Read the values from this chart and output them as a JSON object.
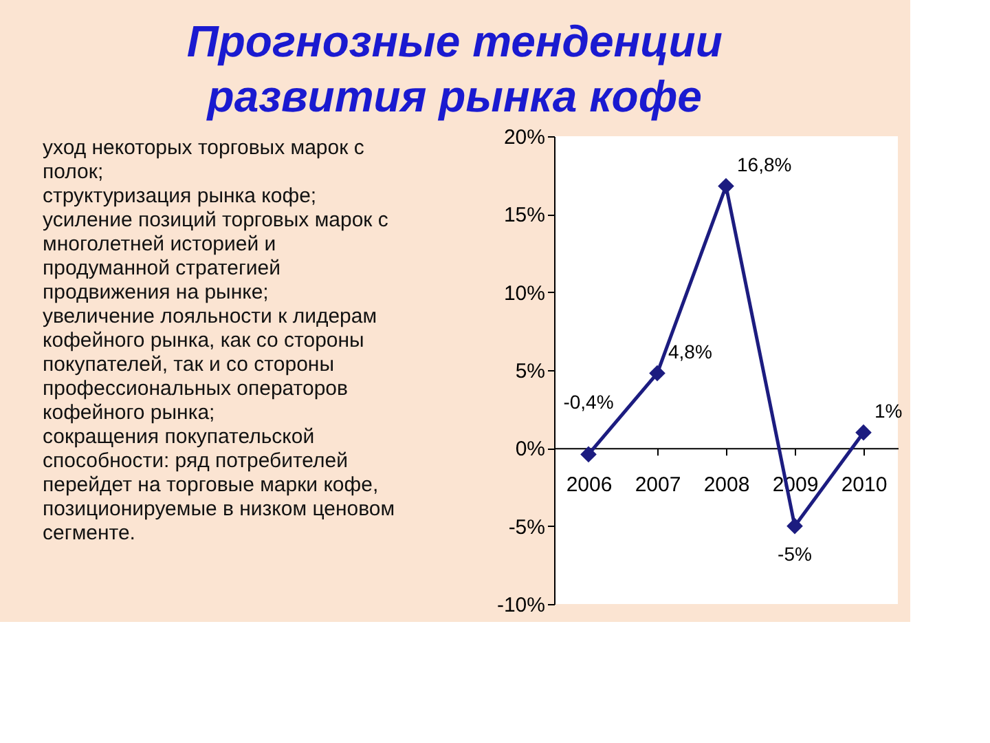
{
  "chart_data": {
    "type": "line",
    "title": "Прогнозные тенденции развития рынка кофе",
    "annotations": [
      "уход некоторых торговых марок с полок;",
      "структуризация рынка кофе;",
      "усиление позиций торговых марок с многолетней историей и продуманной стратегией продвижения на рынке;",
      "увеличение лояльности к лидерам кофейного рынка, как со стороны покупателей, так и со стороны профессиональных операторов кофейного рынка;",
      "сокращения покупательской способности: ряд потребителей перейдет на торговые марки кофе, позиционируемые в низком ценовом сегменте."
    ],
    "categories": [
      "2006",
      "2007",
      "2008",
      "2009",
      "2010"
    ],
    "values": [
      -0.4,
      4.8,
      16.8,
      -5,
      1
    ],
    "value_labels": [
      "-0,4%",
      "4,8%",
      "16,8%",
      "-5%",
      "1%"
    ],
    "color": "#1c1c80",
    "marker": "diamond",
    "line_style": "solid",
    "grid": false,
    "ylim": [
      -10,
      20
    ],
    "yticks": [
      {
        "value": -10,
        "label": "-10%"
      },
      {
        "value": -5,
        "label": "-5%"
      },
      {
        "value": 0,
        "label": "0%"
      },
      {
        "value": 5,
        "label": "5%"
      },
      {
        "value": 10,
        "label": "10%"
      },
      {
        "value": 15,
        "label": "15%"
      },
      {
        "value": 20,
        "label": "20%"
      }
    ]
  }
}
